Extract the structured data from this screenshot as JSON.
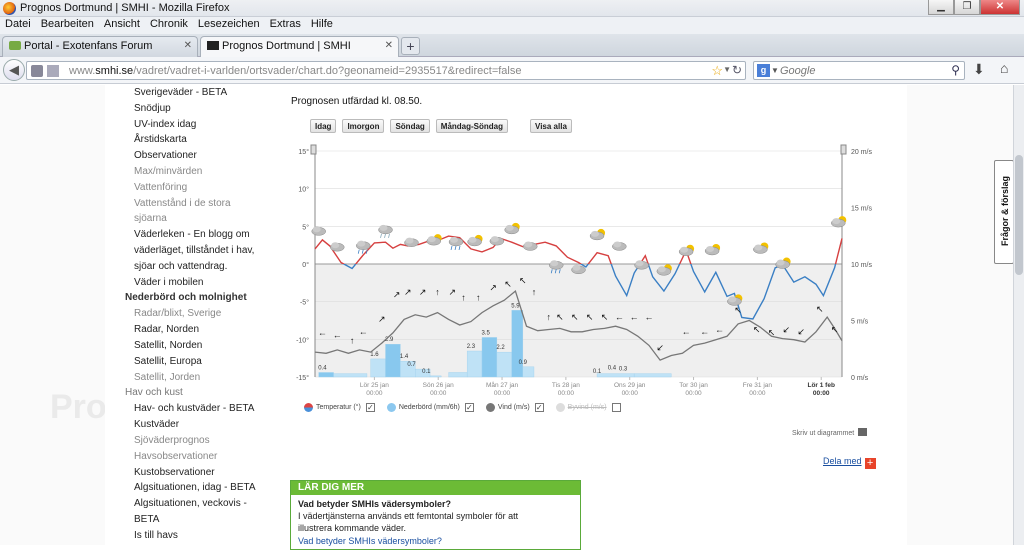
{
  "window": {
    "title": "Prognos Dortmund | SMHI - Mozilla Firefox"
  },
  "menu": [
    "Datei",
    "Bearbeiten",
    "Ansicht",
    "Chronik",
    "Lesezeichen",
    "Extras",
    "Hilfe"
  ],
  "tabs": [
    {
      "label": "Portal - Exotenfans Forum",
      "active": false
    },
    {
      "label": "Prognos Dortmund | SMHI",
      "active": true
    }
  ],
  "newtab_label": "+",
  "address": {
    "prefix": "www.",
    "host": "smhi.se",
    "path": "/vadret/vadret-i-varlden/ortsvader/chart.do?geonameid=2935517&redirect=false"
  },
  "search": {
    "engine": "g",
    "placeholder": "Google"
  },
  "background_text": "Pro",
  "sidebar": {
    "items": [
      {
        "label": "Sverigeväder - BETA",
        "type": "item"
      },
      {
        "label": "Snödjup",
        "type": "item"
      },
      {
        "label": "UV-index idag",
        "type": "item"
      },
      {
        "label": "Årstidskarta",
        "type": "item"
      },
      {
        "label": "Observationer",
        "type": "item"
      },
      {
        "label": "Max/minvärden",
        "type": "gray"
      },
      {
        "label": "Vattenföring",
        "type": "gray"
      },
      {
        "label": "Vattenstånd i de stora",
        "type": "gray"
      },
      {
        "label": "sjöarna",
        "type": "gray"
      },
      {
        "label": "Väderleken - En blogg om",
        "type": "item"
      },
      {
        "label": "väderläget, tillståndet i hav,",
        "type": "item"
      },
      {
        "label": "sjöar och vattendrag.",
        "type": "item"
      },
      {
        "label": "Väder i mobilen",
        "type": "item"
      },
      {
        "label": "Nederbörd och molnighet",
        "type": "head"
      },
      {
        "label": "Radar/blixt, Sverige",
        "type": "gray"
      },
      {
        "label": "Radar, Norden",
        "type": "item"
      },
      {
        "label": "Satellit, Norden",
        "type": "item"
      },
      {
        "label": "Satellit, Europa",
        "type": "item"
      },
      {
        "label": "Satellit, Jorden",
        "type": "gray"
      },
      {
        "label": "Hav och kust",
        "type": "headgray"
      },
      {
        "label": "Hav- och kustväder - BETA",
        "type": "item"
      },
      {
        "label": "Kustväder",
        "type": "item"
      },
      {
        "label": "Sjöväderprognos",
        "type": "gray"
      },
      {
        "label": "Havsobservationer",
        "type": "gray"
      },
      {
        "label": "Kustobservationer",
        "type": "item"
      },
      {
        "label": "Algsituationen, idag - BETA",
        "type": "item"
      },
      {
        "label": "Algsituationen, veckovis -",
        "type": "item"
      },
      {
        "label": "BETA",
        "type": "item"
      },
      {
        "label": "Is till havs",
        "type": "item"
      }
    ]
  },
  "forecast": {
    "issued": "Prognosen utfärdad kl. 08.50."
  },
  "chart_buttons": [
    "Idag",
    "Imorgon",
    "Söndag",
    "Måndag-Söndag",
    "Visa alla"
  ],
  "chart_data": {
    "type": "line",
    "left_axis": {
      "unit": "°",
      "ticks": [
        "15°",
        "10°",
        "5°",
        "0°",
        "-5°",
        "-10°",
        "-15°"
      ],
      "range": [
        -15,
        15
      ]
    },
    "right_axis": {
      "unit": "m/s",
      "ticks": [
        "20 m/s",
        "15 m/s",
        "10 m/s",
        "5 m/s",
        "0 m/s"
      ],
      "range": [
        0,
        20
      ]
    },
    "days": [
      {
        "label": "Lör 25 jan",
        "time": "00:00"
      },
      {
        "label": "Sön 26 jan",
        "time": "00:00"
      },
      {
        "label": "Mån 27 jan",
        "time": "00:00"
      },
      {
        "label": "Tis 28 jan",
        "time": "00:00"
      },
      {
        "label": "Ons 29 jan",
        "time": "00:00"
      },
      {
        "label": "Tor 30 jan",
        "time": "00:00"
      },
      {
        "label": "Fre 31 jan",
        "time": "00:00"
      },
      {
        "label": "Lör 1 feb",
        "time": "00:00"
      }
    ],
    "precip_labels": [
      {
        "x": 0.2,
        "v": "0.4"
      },
      {
        "x": 1.6,
        "v": "1.6"
      },
      {
        "x": 2.0,
        "v": "2.9"
      },
      {
        "x": 2.4,
        "v": "1.4"
      },
      {
        "x": 2.6,
        "v": "0.7"
      },
      {
        "x": 3.0,
        "v": "0.1"
      },
      {
        "x": 4.2,
        "v": "2.3"
      },
      {
        "x": 4.6,
        "v": "3.5"
      },
      {
        "x": 5.0,
        "v": "2.2"
      },
      {
        "x": 5.4,
        "v": "5.9"
      },
      {
        "x": 5.6,
        "v": "0.9"
      },
      {
        "x": 7.6,
        "v": "0.1"
      },
      {
        "x": 8.0,
        "v": "0.4"
      },
      {
        "x": 8.3,
        "v": "0.3"
      }
    ],
    "precip_bars": [
      {
        "x": 0.1,
        "w": 0.4,
        "v": 0.4,
        "strong": true
      },
      {
        "x": 0.5,
        "w": 0.9,
        "v": 0.3,
        "strong": false
      },
      {
        "x": 1.5,
        "w": 0.4,
        "v": 1.6,
        "strong": false
      },
      {
        "x": 1.9,
        "w": 0.4,
        "v": 2.9,
        "strong": true
      },
      {
        "x": 2.3,
        "w": 0.4,
        "v": 1.4,
        "strong": false
      },
      {
        "x": 2.7,
        "w": 0.4,
        "v": 0.7,
        "strong": false
      },
      {
        "x": 3.1,
        "w": 0.3,
        "v": 0.1,
        "strong": false
      },
      {
        "x": 3.6,
        "w": 0.5,
        "v": 0.4,
        "strong": false
      },
      {
        "x": 4.1,
        "w": 0.4,
        "v": 2.3,
        "strong": false
      },
      {
        "x": 4.5,
        "w": 0.4,
        "v": 3.5,
        "strong": true
      },
      {
        "x": 4.9,
        "w": 0.4,
        "v": 2.2,
        "strong": false
      },
      {
        "x": 5.3,
        "w": 0.3,
        "v": 5.9,
        "strong": true
      },
      {
        "x": 5.6,
        "w": 0.3,
        "v": 0.9,
        "strong": false
      },
      {
        "x": 7.6,
        "w": 1.0,
        "v": 0.3,
        "strong": false
      },
      {
        "x": 8.6,
        "w": 1.0,
        "v": 0.3,
        "strong": false
      }
    ],
    "temperature": [
      [
        0,
        2.0
      ],
      [
        0.2,
        3.2
      ],
      [
        0.4,
        2.4
      ],
      [
        0.7,
        0.2
      ],
      [
        1.0,
        -0.6
      ],
      [
        1.3,
        1.2
      ],
      [
        1.6,
        2.8
      ],
      [
        1.9,
        2.9
      ],
      [
        2.1,
        2.1
      ],
      [
        2.3,
        2.6
      ],
      [
        2.5,
        2.4
      ],
      [
        2.8,
        2.6
      ],
      [
        3.1,
        3.1
      ],
      [
        3.4,
        3.3
      ],
      [
        3.6,
        3.7
      ],
      [
        3.9,
        3.5
      ],
      [
        4.2,
        2.0
      ],
      [
        4.5,
        1.6
      ],
      [
        4.8,
        2.2
      ],
      [
        5.0,
        3.4
      ],
      [
        5.3,
        2.9
      ],
      [
        5.6,
        2.3
      ],
      [
        5.9,
        2.6
      ],
      [
        6.2,
        2.9
      ],
      [
        6.5,
        2.4
      ],
      [
        6.8,
        0.9
      ],
      [
        7.1,
        0.2
      ],
      [
        7.3,
        -0.4
      ],
      [
        7.6,
        1.5
      ],
      [
        7.9,
        1.1
      ],
      [
        8.1,
        -1.6
      ],
      [
        8.4,
        -4.2
      ],
      [
        8.6,
        -1.2
      ],
      [
        8.9,
        1.1
      ],
      [
        9.1,
        -1.7
      ],
      [
        9.4,
        -3.6
      ],
      [
        9.7,
        -1.3
      ],
      [
        10.0,
        1.8
      ],
      [
        10.2,
        -1.0
      ],
      [
        10.5,
        -3.7
      ],
      [
        10.8,
        -1.1
      ],
      [
        11.1,
        -4.3
      ],
      [
        11.3,
        -3.9
      ],
      [
        11.5,
        -7.1
      ],
      [
        11.8,
        -7.3
      ],
      [
        12.1,
        -4.6
      ],
      [
        12.4,
        -0.5
      ],
      [
        12.6,
        -0.1
      ],
      [
        12.9,
        -2.4
      ],
      [
        13.2,
        -1.7
      ],
      [
        13.5,
        -2.7
      ],
      [
        13.7,
        -4.2
      ],
      [
        14.0,
        -0.5
      ],
      [
        14.2,
        3.4
      ]
    ],
    "temperature_cold_below": 0,
    "wind": [
      [
        0,
        2.2
      ],
      [
        0.3,
        2.1
      ],
      [
        0.6,
        2.4
      ],
      [
        0.9,
        2.1
      ],
      [
        1.2,
        2.4
      ],
      [
        1.5,
        2.2
      ],
      [
        1.8,
        3.0
      ],
      [
        2.1,
        3.9
      ],
      [
        2.4,
        5.1
      ],
      [
        2.7,
        5.5
      ],
      [
        3.0,
        5.3
      ],
      [
        3.3,
        5.7
      ],
      [
        3.6,
        5.1
      ],
      [
        3.9,
        4.6
      ],
      [
        4.2,
        4.9
      ],
      [
        4.5,
        5.7
      ],
      [
        4.8,
        6.3
      ],
      [
        5.1,
        6.8
      ],
      [
        5.4,
        7.6
      ],
      [
        5.7,
        4.5
      ],
      [
        6.0,
        4.1
      ],
      [
        6.3,
        4.2
      ],
      [
        6.6,
        4.3
      ],
      [
        6.9,
        4.0
      ],
      [
        7.2,
        4.0
      ],
      [
        7.5,
        4.2
      ],
      [
        7.8,
        4.3
      ],
      [
        8.1,
        4.5
      ],
      [
        8.4,
        4.2
      ],
      [
        8.7,
        3.6
      ],
      [
        9.0,
        2.8
      ],
      [
        9.3,
        1.5
      ],
      [
        9.6,
        1.9
      ],
      [
        9.9,
        2.1
      ],
      [
        10.2,
        2.8
      ],
      [
        10.5,
        3.0
      ],
      [
        10.8,
        3.3
      ],
      [
        11.1,
        3.6
      ],
      [
        11.4,
        4.7
      ],
      [
        11.7,
        5.0
      ],
      [
        12.0,
        4.4
      ],
      [
        12.3,
        3.6
      ],
      [
        12.6,
        3.4
      ],
      [
        12.9,
        3.3
      ],
      [
        13.2,
        3.1
      ],
      [
        13.5,
        4.0
      ],
      [
        13.8,
        5.3
      ],
      [
        14.0,
        4.3
      ],
      [
        14.2,
        3.2
      ]
    ],
    "x_max": 14.2,
    "weather_icons": [
      {
        "x": 0.1,
        "t": 3.8,
        "k": "cloud"
      },
      {
        "x": 0.6,
        "t": 1.7,
        "k": "cloud"
      },
      {
        "x": 1.3,
        "t": 1.9,
        "k": "rain"
      },
      {
        "x": 1.9,
        "t": 4.0,
        "k": "snow"
      },
      {
        "x": 2.6,
        "t": 2.3,
        "k": "cloud"
      },
      {
        "x": 3.2,
        "t": 2.5,
        "k": "sun"
      },
      {
        "x": 3.8,
        "t": 2.4,
        "k": "rain"
      },
      {
        "x": 4.3,
        "t": 2.4,
        "k": "sun"
      },
      {
        "x": 4.9,
        "t": 2.5,
        "k": "cloud"
      },
      {
        "x": 5.3,
        "t": 4.0,
        "k": "sun"
      },
      {
        "x": 5.8,
        "t": 1.8,
        "k": "cloud"
      },
      {
        "x": 6.5,
        "t": -0.7,
        "k": "rain"
      },
      {
        "x": 7.1,
        "t": -1.3,
        "k": "cloud"
      },
      {
        "x": 7.6,
        "t": 3.2,
        "k": "sun"
      },
      {
        "x": 8.2,
        "t": 1.8,
        "k": "cloud"
      },
      {
        "x": 8.8,
        "t": -0.7,
        "k": "cloud"
      },
      {
        "x": 9.4,
        "t": -1.5,
        "k": "sun"
      },
      {
        "x": 10.0,
        "t": 1.1,
        "k": "sun"
      },
      {
        "x": 10.7,
        "t": 1.2,
        "k": "sun"
      },
      {
        "x": 11.3,
        "t": -5.5,
        "k": "sun"
      },
      {
        "x": 12.0,
        "t": 1.4,
        "k": "sun"
      },
      {
        "x": 12.6,
        "t": -0.6,
        "k": "sun"
      },
      {
        "x": 14.1,
        "t": 4.9,
        "k": "sun"
      }
    ],
    "wind_arrows": [
      {
        "x": 0.2,
        "w": 3.3,
        "d": "←"
      },
      {
        "x": 0.6,
        "w": 3.1,
        "d": "←"
      },
      {
        "x": 1.0,
        "w": 2.6,
        "d": "↑"
      },
      {
        "x": 1.3,
        "w": 3.4,
        "d": "←"
      },
      {
        "x": 1.8,
        "w": 4.5,
        "d": "↗"
      },
      {
        "x": 2.2,
        "w": 6.7,
        "d": "↗"
      },
      {
        "x": 2.5,
        "w": 6.9,
        "d": "↗"
      },
      {
        "x": 2.9,
        "w": 6.9,
        "d": "↗"
      },
      {
        "x": 3.3,
        "w": 6.9,
        "d": "↑"
      },
      {
        "x": 3.7,
        "w": 6.9,
        "d": "↗"
      },
      {
        "x": 4.0,
        "w": 6.4,
        "d": "↑"
      },
      {
        "x": 4.4,
        "w": 6.4,
        "d": "↑"
      },
      {
        "x": 4.8,
        "w": 7.3,
        "d": "↗"
      },
      {
        "x": 5.2,
        "w": 7.6,
        "d": "↖"
      },
      {
        "x": 5.6,
        "w": 7.9,
        "d": "↖"
      },
      {
        "x": 5.9,
        "w": 6.9,
        "d": "↑"
      },
      {
        "x": 6.3,
        "w": 4.7,
        "d": "↑"
      },
      {
        "x": 6.6,
        "w": 4.7,
        "d": "↖"
      },
      {
        "x": 7.0,
        "w": 4.7,
        "d": "↖"
      },
      {
        "x": 7.4,
        "w": 4.7,
        "d": "↖"
      },
      {
        "x": 7.8,
        "w": 4.7,
        "d": "↖"
      },
      {
        "x": 8.2,
        "w": 4.7,
        "d": "←"
      },
      {
        "x": 8.6,
        "w": 4.7,
        "d": "←"
      },
      {
        "x": 9.0,
        "w": 4.7,
        "d": "←"
      },
      {
        "x": 9.3,
        "w": 2.0,
        "d": "↙"
      },
      {
        "x": 10.0,
        "w": 3.4,
        "d": "←"
      },
      {
        "x": 10.5,
        "w": 3.4,
        "d": "←"
      },
      {
        "x": 10.9,
        "w": 3.6,
        "d": "←"
      },
      {
        "x": 11.4,
        "w": 5.3,
        "d": "↖"
      },
      {
        "x": 11.9,
        "w": 3.6,
        "d": "↖"
      },
      {
        "x": 12.3,
        "w": 3.3,
        "d": "↖"
      },
      {
        "x": 12.7,
        "w": 3.6,
        "d": "↙"
      },
      {
        "x": 13.1,
        "w": 3.4,
        "d": "↙"
      },
      {
        "x": 13.6,
        "w": 5.4,
        "d": "↖"
      },
      {
        "x": 14.0,
        "w": 3.6,
        "d": "↖"
      }
    ],
    "colors": {
      "warm": "#d64040",
      "cold": "#3a7fc4",
      "wind": "#777777",
      "precip": "#bfe2f6",
      "precip_strong": "#88c8ee",
      "shade": "#efefef"
    }
  },
  "legend": [
    {
      "label": "Temperatur (°)",
      "color": "#d44",
      "color2": "#4a90d9",
      "checked": true,
      "disabled": false
    },
    {
      "label": "Nederbörd (mm/6h)",
      "color": "#8cc8ef",
      "checked": true,
      "disabled": false
    },
    {
      "label": "Vind (m/s)",
      "color": "#777",
      "checked": true,
      "disabled": false
    },
    {
      "label": "Byvind (m/s)",
      "color": "#ddd",
      "checked": false,
      "disabled": true
    }
  ],
  "print_link": "Skriv ut diagrammet",
  "share_link": "Dela med",
  "share_icon": "plus-icon",
  "learn_more": {
    "heading": "LÄR DIG MER",
    "question": "Vad betyder SMHIs vädersymboler?",
    "text1": "I vädertjänsterna används ett femtontal symboler för att",
    "text2": "illustrera kommande väder.",
    "link": "Vad betyder SMHIs vädersymboler?"
  },
  "feedback_tab": "Frågor & förslag"
}
